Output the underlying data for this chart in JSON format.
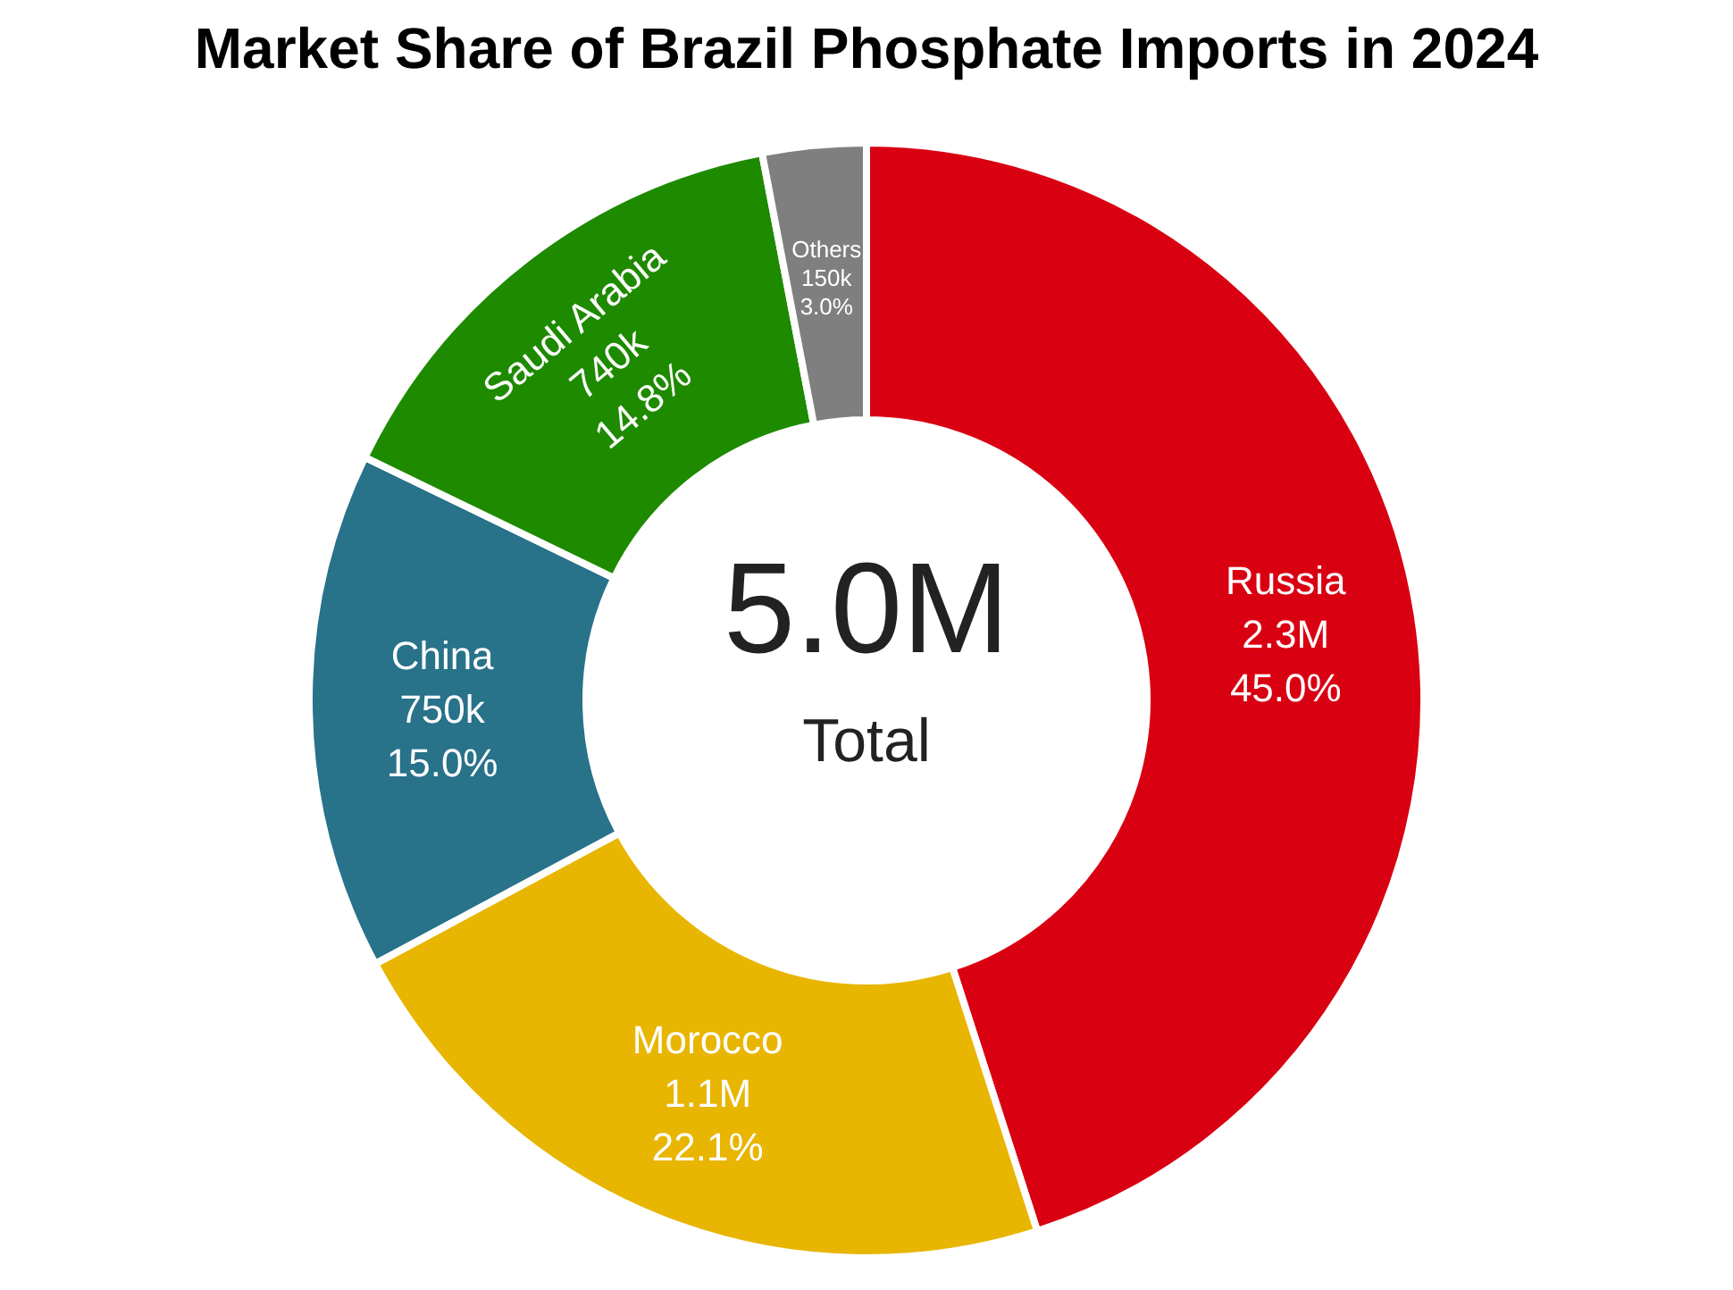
{
  "chart_data": {
    "type": "donut",
    "title": "Market Share of Brazil Phosphate Imports in 2024",
    "categories": [
      "Russia",
      "Morocco",
      "China",
      "Saudi Arabia",
      "Others"
    ],
    "values": [
      45.0,
      22.1,
      15.0,
      14.8,
      3.0
    ],
    "value_labels": [
      "2.3M\n45.0%",
      "1.1M\n22.1%",
      "750k\n15.0%",
      "740k\n14.8%",
      "150k\n3.0%"
    ],
    "colors": [
      "#d90012",
      "#e8b500",
      "#28728a",
      "#1e8a00",
      "#7f7f7f"
    ],
    "annotations": [
      "5.0M",
      "Total"
    ],
    "legend": false
  }
}
